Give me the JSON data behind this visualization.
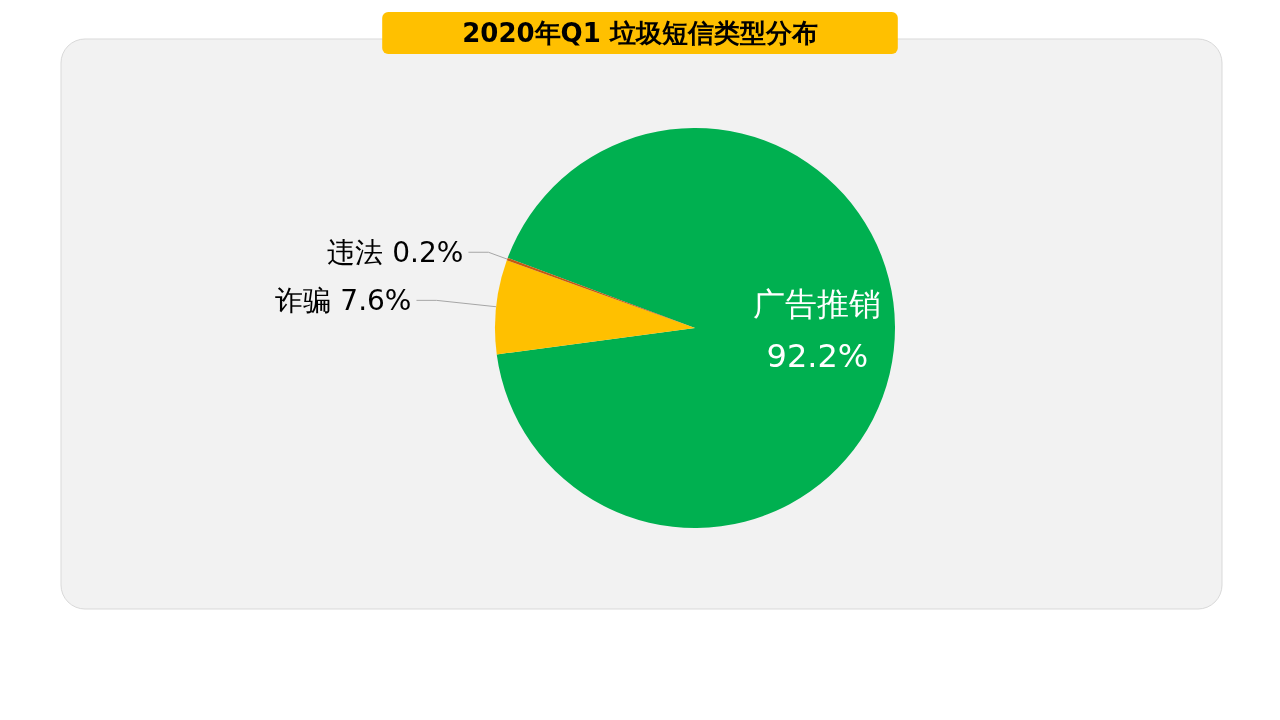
{
  "chart_data": {
    "type": "pie",
    "title": "2020年Q1 垃圾短信类型分布",
    "categories": [
      "广告推销",
      "诈骗",
      "违法"
    ],
    "values": [
      92.2,
      7.6,
      0.2
    ],
    "value_labels": [
      "92.2%",
      "7.6%",
      "0.2%"
    ],
    "colors": [
      "#00b050",
      "#ffc000",
      "#c55a11"
    ],
    "legend": false
  }
}
